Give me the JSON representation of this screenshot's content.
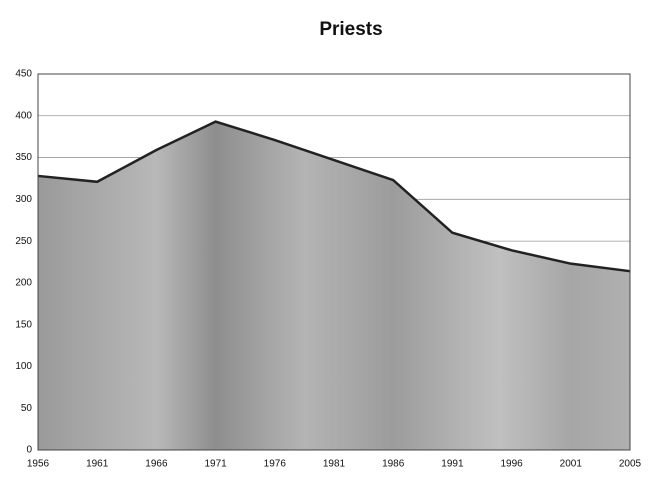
{
  "chart_data": {
    "type": "area",
    "title": "Priests",
    "categories": [
      "1956",
      "1961",
      "1966",
      "1971",
      "1976",
      "1981",
      "1986",
      "1991",
      "1996",
      "2001",
      "2005"
    ],
    "values": [
      328,
      321,
      359,
      393,
      371,
      347,
      323,
      260,
      239,
      223,
      214
    ],
    "color": "#a8a8a8",
    "ylim": [
      0,
      450
    ],
    "yticks": [
      0,
      50,
      100,
      150,
      200,
      250,
      300,
      350,
      400,
      450
    ],
    "grid": true
  }
}
